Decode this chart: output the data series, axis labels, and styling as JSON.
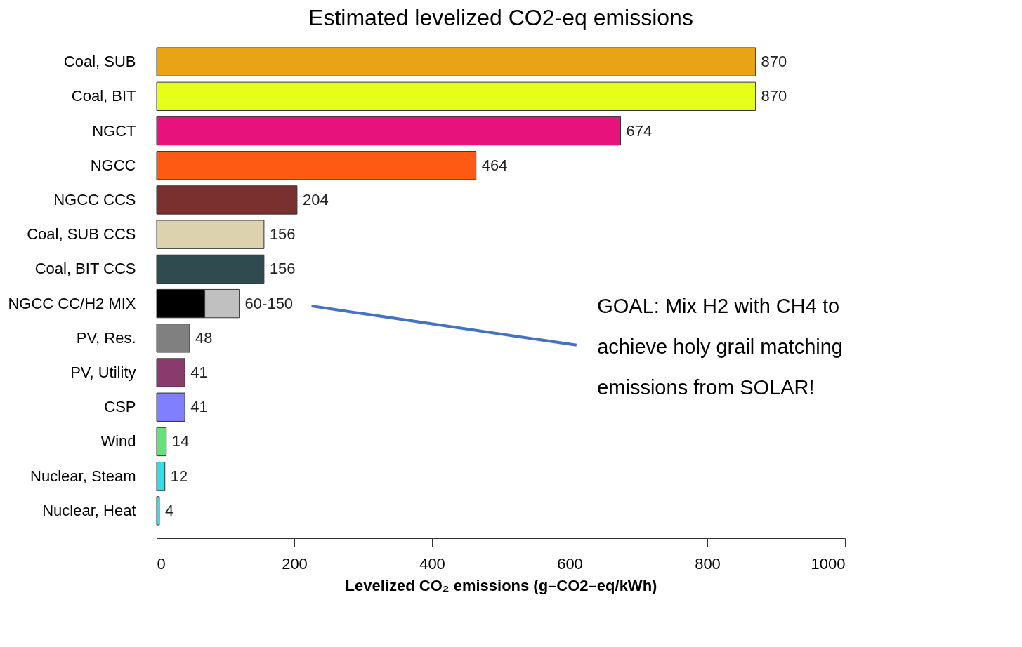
{
  "chart_data": {
    "type": "bar",
    "orientation": "horizontal",
    "stacked": true,
    "title": "Estimated levelized CO2-eq emissions",
    "xlabel": "Levelized CO₂ emissions (g–CO2–eq/kWh)",
    "categories": [
      "Coal, SUB",
      "Coal, BIT",
      "NGCT",
      "NGCC",
      "NGCC CCS",
      "Coal, SUB CCS",
      "Coal, BIT CCS",
      "NGCC CC/H2 MIX",
      "PV, Res.",
      "PV, Utility",
      "CSP",
      "Wind",
      "Nuclear, Steam",
      "Nuclear, Heat"
    ],
    "series": [
      {
        "colors": [
          "#e8a317",
          "#e6ff1a",
          "#e8127c",
          "#ff5a14",
          "#7b3030",
          "#dcd2ae",
          "#2f4b4f",
          "#000000",
          "#808080",
          "#8b3a6e",
          "#8080ff",
          "#66e07a",
          "#33dde8",
          "#33dde8"
        ],
        "values": [
          870,
          870,
          674,
          464,
          204,
          156,
          156,
          70,
          48,
          41,
          41,
          14,
          12,
          4
        ],
        "value_labels": [
          "870",
          "870",
          "674",
          "464",
          "204",
          "156",
          "156",
          null,
          "48",
          "41",
          "41",
          "14",
          "12",
          "4"
        ]
      },
      {
        "color": "#c0c0c0",
        "values": [
          null,
          null,
          null,
          null,
          null,
          null,
          null,
          50,
          null,
          null,
          null,
          null,
          null,
          null
        ],
        "value_labels": [
          null,
          null,
          null,
          null,
          null,
          null,
          null,
          "60-150",
          null,
          null,
          null,
          null,
          null,
          null
        ]
      }
    ],
    "xlim": [
      0,
      1000
    ],
    "xticks": [
      0,
      200,
      400,
      600,
      800,
      1000
    ],
    "grid": false,
    "annotations": [
      "GOAL: Mix H2 with CH4 to\nachieve holy grail matching\nemissions from SOLAR!"
    ]
  }
}
